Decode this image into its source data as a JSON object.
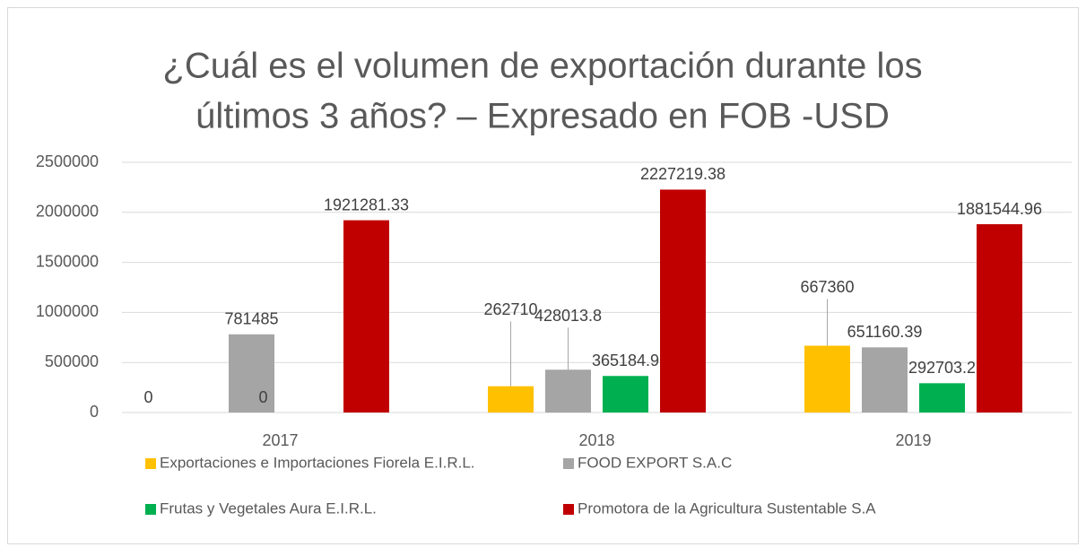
{
  "chart_data": {
    "type": "bar",
    "title_lines": [
      "¿Cuál es el volumen de exportación durante los",
      "últimos 3 años? – Expresado en FOB -USD"
    ],
    "categories": [
      "2017",
      "2018",
      "2019"
    ],
    "series": [
      {
        "name": "Exportaciones e Importaciones Fiorela E.I.R.L.",
        "color": "#ffc000",
        "values": [
          0,
          262710,
          667360
        ]
      },
      {
        "name": "FOOD EXPORT S.A.C",
        "color": "#a5a5a5",
        "values": [
          781485,
          428013.8,
          651160.39
        ]
      },
      {
        "name": "Frutas y Vegetales Aura E.I.R.L.",
        "color": "#00b050",
        "values": [
          0,
          365184.9,
          292703.2
        ]
      },
      {
        "name": "Promotora de la Agricultura Sustentable S.A",
        "color": "#c00000",
        "values": [
          1921281.33,
          2227219.38,
          1881544.96
        ]
      }
    ],
    "ylim": [
      0,
      2500000
    ],
    "yticks": [
      0,
      500000,
      1000000,
      1500000,
      2000000,
      2500000
    ],
    "grid": true,
    "legend": "bottom"
  }
}
